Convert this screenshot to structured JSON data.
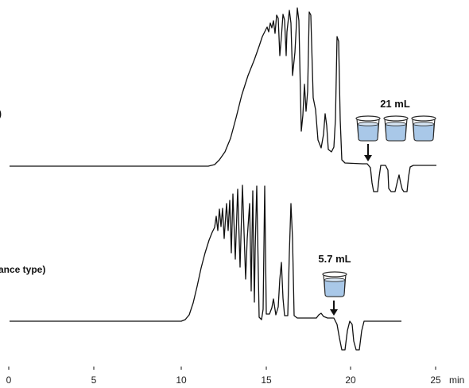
{
  "chart_data": [
    {
      "type": "line",
      "series_label": ")",
      "x_unit": "min",
      "xlim": [
        0,
        25
      ],
      "x_ticks": [
        0,
        5,
        10,
        15,
        20,
        25
      ],
      "collection_volume": "21 mL",
      "beaker_count": 3,
      "liquid_color": "#a9c8e8",
      "arrow_x": 21.0
    },
    {
      "type": "line",
      "series_label": "ance type)",
      "x_unit": "min",
      "xlim": [
        0,
        25
      ],
      "x_ticks": [
        0,
        5,
        10,
        15,
        20,
        25
      ],
      "collection_volume": "5.7 mL",
      "beaker_count": 1,
      "liquid_color": "#a9c8e8",
      "arrow_x": 19.0
    }
  ],
  "axis": {
    "tick_labels": [
      "0",
      "5",
      "10",
      "15",
      "20",
      "25"
    ],
    "unit": "min"
  }
}
